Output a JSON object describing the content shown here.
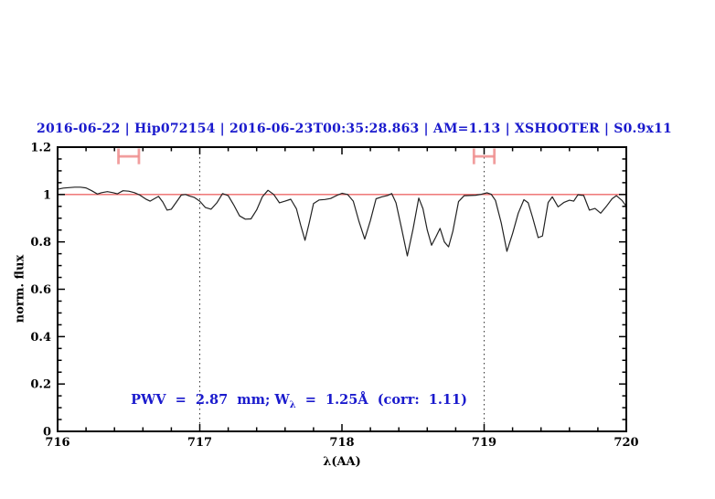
{
  "colors": {
    "title_blue": "#1a1acd",
    "annotation_blue": "#1a1acd",
    "reference_line": "#ee6a6a",
    "range_marker": "#ef8e8e",
    "spectrum": "#222222",
    "axis": "#000000",
    "dotted_guide": "#333333"
  },
  "annotation_parts": {
    "pre": "PWV  =  2.87  mm; W",
    "sub": "λ",
    "post": "  =  1.25Å  (corr:  1.11)"
  },
  "chart_data": {
    "type": "line",
    "title": "2016-06-22 | Hip072154 | 2016-06-23T00:35:28.863 | AM=1.13 | XSHOOTER | S0.9x11",
    "xlabel": "λ(AA)",
    "ylabel": "norm. flux",
    "annotation": "PWV = 2.87 mm; Wλ = 1.25Å (corr: 1.11)",
    "xlim": [
      716,
      720
    ],
    "ylim": [
      0,
      1.2
    ],
    "xticks": [
      716,
      717,
      718,
      719,
      720
    ],
    "xtick_labels": [
      "716",
      "717",
      "718",
      "719",
      "720"
    ],
    "yticks": [
      0,
      0.2,
      0.4,
      0.6,
      0.8,
      1,
      1.2
    ],
    "ytick_labels": [
      "0",
      "0.2",
      "0.4",
      "0.6",
      "0.8",
      "1",
      "1.2"
    ],
    "minor_x_step": 0.2,
    "minor_y_step": 0.05,
    "grid": "off",
    "legend": "none",
    "dotted_guides_x": [
      717,
      719
    ],
    "reference_line_y": 1.0,
    "range_markers": [
      {
        "x_center": 716.5,
        "x_half_width": 0.072,
        "y": 1.161,
        "cap_half_height": 0.033
      },
      {
        "x_center": 719.0,
        "x_half_width": 0.072,
        "y": 1.161,
        "cap_half_height": 0.033
      }
    ],
    "series": [
      {
        "name": "normalized telluric spectrum",
        "x": [
          716.0,
          716.04,
          716.08,
          716.12,
          716.16,
          716.2,
          716.24,
          716.28,
          716.31,
          716.35,
          716.39,
          716.42,
          716.46,
          716.5,
          716.54,
          716.58,
          716.62,
          716.65,
          716.68,
          716.71,
          716.74,
          716.77,
          716.8,
          716.84,
          716.87,
          716.9,
          716.93,
          716.96,
          717.0,
          717.04,
          717.08,
          717.12,
          717.16,
          717.2,
          717.24,
          717.28,
          717.32,
          717.36,
          717.4,
          717.44,
          717.48,
          717.52,
          717.56,
          717.6,
          717.64,
          717.68,
          717.71,
          717.74,
          717.77,
          717.8,
          717.84,
          717.88,
          717.92,
          717.96,
          718.0,
          718.04,
          718.08,
          718.12,
          718.16,
          718.2,
          718.24,
          718.28,
          718.32,
          718.35,
          718.38,
          718.42,
          718.46,
          718.5,
          718.54,
          718.57,
          718.6,
          718.63,
          718.66,
          718.69,
          718.72,
          718.75,
          718.78,
          718.82,
          718.86,
          718.9,
          718.94,
          718.98,
          719.02,
          719.05,
          719.08,
          719.12,
          719.16,
          719.2,
          719.24,
          719.28,
          719.31,
          719.34,
          719.38,
          719.41,
          719.45,
          719.48,
          719.52,
          719.56,
          719.6,
          719.63,
          719.66,
          719.7,
          719.74,
          719.78,
          719.82,
          719.86,
          719.9,
          719.93,
          719.97,
          720.0
        ],
        "y": [
          1.022,
          1.027,
          1.029,
          1.031,
          1.031,
          1.028,
          1.016,
          1.002,
          1.008,
          1.012,
          1.008,
          1.003,
          1.016,
          1.014,
          1.008,
          0.997,
          0.981,
          0.972,
          0.982,
          0.992,
          0.968,
          0.934,
          0.938,
          0.972,
          0.998,
          1.0,
          0.993,
          0.988,
          0.972,
          0.945,
          0.938,
          0.965,
          1.004,
          0.995,
          0.955,
          0.91,
          0.896,
          0.897,
          0.935,
          0.99,
          1.018,
          1.0,
          0.965,
          0.972,
          0.98,
          0.94,
          0.87,
          0.807,
          0.88,
          0.962,
          0.977,
          0.979,
          0.983,
          0.995,
          1.005,
          1.0,
          0.972,
          0.885,
          0.812,
          0.89,
          0.982,
          0.99,
          0.996,
          1.004,
          0.965,
          0.855,
          0.741,
          0.855,
          0.985,
          0.94,
          0.85,
          0.786,
          0.82,
          0.857,
          0.8,
          0.779,
          0.845,
          0.97,
          0.995,
          0.996,
          0.997,
          1.001,
          1.007,
          1.001,
          0.975,
          0.88,
          0.76,
          0.835,
          0.921,
          0.978,
          0.965,
          0.905,
          0.818,
          0.825,
          0.966,
          0.99,
          0.948,
          0.966,
          0.976,
          0.972,
          0.999,
          0.996,
          0.934,
          0.941,
          0.921,
          0.95,
          0.982,
          0.995,
          0.975,
          0.95
        ]
      }
    ]
  }
}
